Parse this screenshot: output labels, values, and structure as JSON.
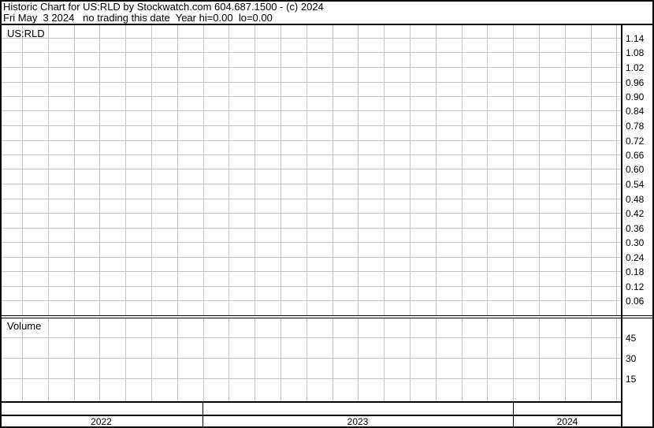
{
  "header": {
    "line1": "Historic Chart for US:RLD by Stockwatch.com 604.687.1500 - (c) 2024",
    "line2": "Fri May  3 2024   no trading this date  Year hi=0.00  lo=0.00"
  },
  "chart_data": [
    {
      "type": "line",
      "title": "US:RLD",
      "series": [],
      "y_ticks": [
        "1.14",
        "1.08",
        "1.02",
        "0.96",
        "0.90",
        "0.84",
        "0.78",
        "0.72",
        "0.66",
        "0.60",
        "0.54",
        "0.48",
        "0.42",
        "0.36",
        "0.30",
        "0.24",
        "0.18",
        "0.12",
        "0.06"
      ],
      "ylim": [
        0,
        1.17
      ],
      "grid": true,
      "y_axis_side": "right",
      "x_categories": [
        "2022",
        "2023",
        "2024"
      ]
    },
    {
      "type": "bar",
      "title": "Volume",
      "series": [],
      "y_ticks": [
        "45",
        "30",
        "15"
      ],
      "ylim": [
        0,
        60
      ],
      "grid": true,
      "y_axis_side": "right"
    }
  ],
  "colors": {
    "grid": "#c8c8c8",
    "border": "#000000",
    "background": "#ffffff"
  }
}
